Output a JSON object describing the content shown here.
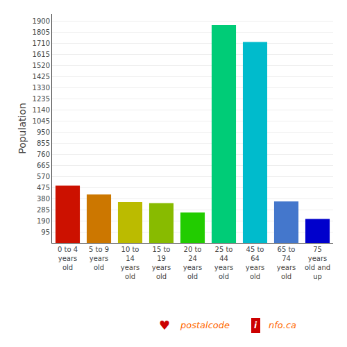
{
  "chart_data": {
    "type": "bar",
    "categories": [
      "0 to 4\nyears\nold",
      "5 to 9\nyears\nold",
      "10 to\n14\nyears\nold",
      "15 to\n19\nyears\nold",
      "20 to\n24\nyears\nold",
      "25 to\n44\nyears\nold",
      "45 to\n64\nyears\nold",
      "65 to\n74\nyears\nold",
      "75\nyears\nold and\nup"
    ],
    "values": [
      490,
      415,
      350,
      340,
      260,
      1865,
      1720,
      355,
      205
    ],
    "colors": [
      "#cc1100",
      "#cc7700",
      "#bbbb00",
      "#88bb00",
      "#22cc00",
      "#00cc77",
      "#00bbcc",
      "#4477cc",
      "#0000cc"
    ],
    "ylabel": "Population",
    "ylim": [
      0,
      1960
    ],
    "yticks": [
      95,
      190,
      285,
      380,
      475,
      570,
      665,
      760,
      855,
      950,
      1045,
      1140,
      1235,
      1330,
      1425,
      1520,
      1615,
      1710,
      1805,
      1900
    ],
    "grid": true,
    "annotations": [
      {
        "text": "♥",
        "color": "#cc0000"
      },
      {
        "text": "postalcode",
        "color": "#ff6600"
      },
      {
        "text": "i",
        "color": "#cc0000"
      },
      {
        "text": "nfo.ca",
        "color": "#ff6600"
      }
    ]
  }
}
